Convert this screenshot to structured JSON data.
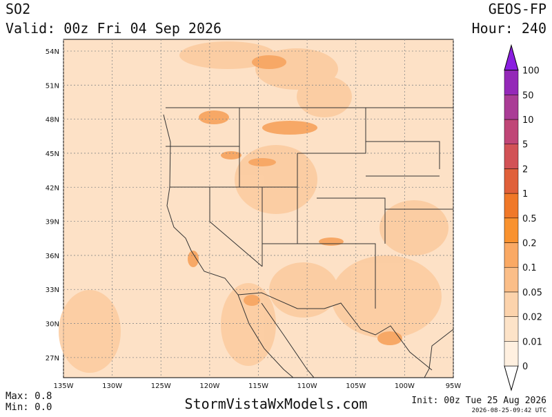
{
  "header": {
    "variable": "SO2",
    "valid": "Valid: 00z Fri 04 Sep 2026",
    "model": "GEOS-FP",
    "hour": "Hour: 240"
  },
  "map": {
    "lat_ticks": [
      {
        "value": 54,
        "label": "54N"
      },
      {
        "value": 51,
        "label": "51N"
      },
      {
        "value": 48,
        "label": "48N"
      },
      {
        "value": 45,
        "label": "45N"
      },
      {
        "value": 42,
        "label": "42N"
      },
      {
        "value": 39,
        "label": "39N"
      },
      {
        "value": 36,
        "label": "36N"
      },
      {
        "value": 33,
        "label": "33N"
      },
      {
        "value": 30,
        "label": "30N"
      },
      {
        "value": 27,
        "label": "27N"
      }
    ],
    "lon_ticks": [
      {
        "value": -135,
        "label": "135W"
      },
      {
        "value": -130,
        "label": "130W"
      },
      {
        "value": -125,
        "label": "125W"
      },
      {
        "value": -120,
        "label": "120W"
      },
      {
        "value": -115,
        "label": "115W"
      },
      {
        "value": -110,
        "label": "110W"
      },
      {
        "value": -105,
        "label": "105W"
      },
      {
        "value": -100,
        "label": "100W"
      },
      {
        "value": -95,
        "label": "95W"
      }
    ]
  },
  "colorbar": {
    "labels": [
      "0",
      "0.01",
      "0.02",
      "0.05",
      "0.1",
      "0.2",
      "0.5",
      "1",
      "2",
      "5",
      "10",
      "50",
      "100"
    ],
    "colors": [
      "#fff0e0",
      "#fde3c8",
      "#fcd3ac",
      "#fbbe88",
      "#faa964",
      "#f9922f",
      "#f07828",
      "#e0603a",
      "#d25256",
      "#c04677",
      "#aa3c96",
      "#9428b8",
      "#8a1ee0"
    ]
  },
  "footer": {
    "max": "Max: 0.8",
    "min": "Min: 0.0",
    "site": "StormVistaWxModels.com",
    "init": "Init: 00z Tue 25 Aug 2026",
    "stamp": "2026-08-25-09:42 UTC"
  }
}
